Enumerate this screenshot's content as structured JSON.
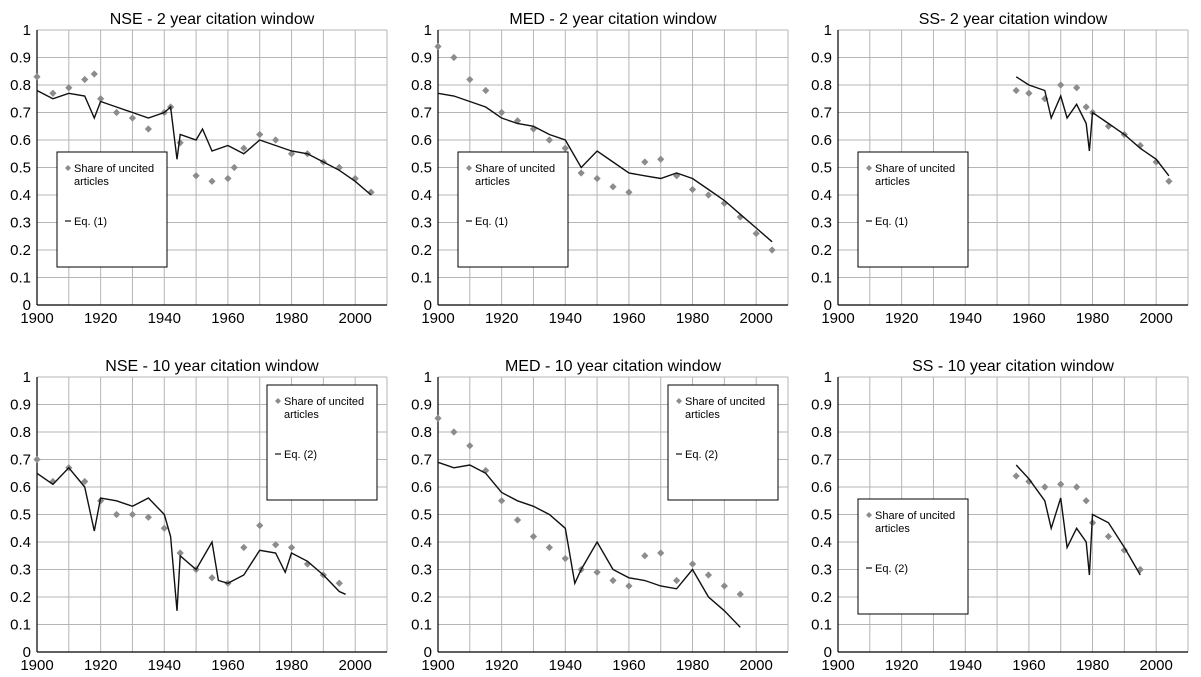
{
  "figure": {
    "colors": {
      "share": "#8c8c8c",
      "eq": "#111111",
      "grid": "#b5b5b5",
      "axis": "#000000"
    }
  },
  "chart_data": [
    {
      "type": "scatter",
      "title": "NSE - 2 year citation window",
      "xlim": [
        1900,
        2010
      ],
      "ylim": [
        0,
        1
      ],
      "x_ticks": [
        "1900",
        "1920",
        "1940",
        "1960",
        "1980",
        "2000"
      ],
      "y_ticks": [
        "0",
        "0.1",
        "0.2",
        "0.3",
        "0.4",
        "0.5",
        "0.6",
        "0.7",
        "0.8",
        "0.9",
        "1"
      ],
      "grid": true,
      "legend": {
        "position": "bottom-left",
        "labels": [
          "Share of uncited articles",
          "Eq. (1)"
        ]
      },
      "series": [
        {
          "name": "Share of uncited articles",
          "style": "markers",
          "x": [
            1900,
            1905,
            1910,
            1915,
            1918,
            1920,
            1925,
            1930,
            1935,
            1940,
            1942,
            1945,
            1950,
            1955,
            1960,
            1962,
            1965,
            1970,
            1975,
            1980,
            1985,
            1990,
            1995,
            2000,
            2005
          ],
          "y": [
            0.83,
            0.77,
            0.79,
            0.82,
            0.84,
            0.75,
            0.7,
            0.68,
            0.64,
            0.7,
            0.72,
            0.59,
            0.47,
            0.45,
            0.46,
            0.5,
            0.57,
            0.62,
            0.6,
            0.55,
            0.55,
            0.52,
            0.5,
            0.46,
            0.41
          ]
        },
        {
          "name": "Eq. (1)",
          "style": "line",
          "x": [
            1900,
            1905,
            1910,
            1915,
            1918,
            1920,
            1925,
            1930,
            1935,
            1940,
            1942,
            1944,
            1945,
            1950,
            1952,
            1955,
            1960,
            1965,
            1970,
            1975,
            1980,
            1985,
            1990,
            1995,
            2000,
            2005
          ],
          "y": [
            0.78,
            0.75,
            0.77,
            0.76,
            0.68,
            0.74,
            0.72,
            0.7,
            0.68,
            0.7,
            0.72,
            0.53,
            0.62,
            0.6,
            0.64,
            0.56,
            0.58,
            0.55,
            0.6,
            0.58,
            0.56,
            0.55,
            0.52,
            0.49,
            0.45,
            0.4
          ]
        }
      ]
    },
    {
      "type": "scatter",
      "title": "MED - 2 year citation window",
      "xlim": [
        1900,
        2010
      ],
      "ylim": [
        0,
        1
      ],
      "x_ticks": [
        "1900",
        "1920",
        "1940",
        "1960",
        "1980",
        "2000"
      ],
      "y_ticks": [
        "0",
        "0.1",
        "0.2",
        "0.3",
        "0.4",
        "0.5",
        "0.6",
        "0.7",
        "0.8",
        "0.9",
        "1"
      ],
      "grid": true,
      "legend": {
        "position": "bottom-left",
        "labels": [
          "Share of uncited articles",
          "Eq. (1)"
        ]
      },
      "series": [
        {
          "name": "Share of uncited articles",
          "style": "markers",
          "x": [
            1900,
            1905,
            1910,
            1915,
            1920,
            1925,
            1930,
            1935,
            1940,
            1945,
            1950,
            1955,
            1960,
            1965,
            1970,
            1975,
            1980,
            1985,
            1990,
            1995,
            2000,
            2005
          ],
          "y": [
            0.94,
            0.9,
            0.82,
            0.78,
            0.7,
            0.67,
            0.64,
            0.6,
            0.57,
            0.48,
            0.46,
            0.43,
            0.41,
            0.52,
            0.53,
            0.47,
            0.42,
            0.4,
            0.37,
            0.32,
            0.26,
            0.2
          ]
        },
        {
          "name": "Eq. (1)",
          "style": "line",
          "x": [
            1900,
            1905,
            1910,
            1915,
            1920,
            1925,
            1930,
            1935,
            1940,
            1945,
            1950,
            1955,
            1960,
            1965,
            1970,
            1975,
            1980,
            1985,
            1990,
            1995,
            2000,
            2005
          ],
          "y": [
            0.77,
            0.76,
            0.74,
            0.72,
            0.68,
            0.66,
            0.65,
            0.62,
            0.6,
            0.5,
            0.56,
            0.52,
            0.48,
            0.47,
            0.46,
            0.48,
            0.46,
            0.42,
            0.38,
            0.33,
            0.28,
            0.23
          ]
        }
      ]
    },
    {
      "type": "scatter",
      "title": "SS- 2 year citation window",
      "xlim": [
        1900,
        2010
      ],
      "ylim": [
        0,
        1
      ],
      "x_ticks": [
        "1900",
        "1920",
        "1940",
        "1960",
        "1980",
        "2000"
      ],
      "y_ticks": [
        "0",
        "0.1",
        "0.2",
        "0.3",
        "0.4",
        "0.5",
        "0.6",
        "0.7",
        "0.8",
        "0.9",
        "1"
      ],
      "grid": true,
      "legend": {
        "position": "bottom-left",
        "labels": [
          "Share of uncited articles",
          "Eq. (1)"
        ]
      },
      "series": [
        {
          "name": "Share of uncited articles",
          "style": "markers",
          "x": [
            1956,
            1960,
            1965,
            1970,
            1975,
            1978,
            1980,
            1985,
            1990,
            1995,
            2000,
            2004
          ],
          "y": [
            0.78,
            0.77,
            0.75,
            0.8,
            0.79,
            0.72,
            0.7,
            0.65,
            0.62,
            0.58,
            0.52,
            0.45
          ]
        },
        {
          "name": "Eq. (1)",
          "style": "line",
          "x": [
            1956,
            1960,
            1965,
            1967,
            1970,
            1972,
            1975,
            1978,
            1979,
            1980,
            1985,
            1990,
            1995,
            2000,
            2004
          ],
          "y": [
            0.83,
            0.8,
            0.78,
            0.68,
            0.76,
            0.68,
            0.73,
            0.66,
            0.56,
            0.7,
            0.66,
            0.62,
            0.57,
            0.53,
            0.47
          ]
        }
      ]
    },
    {
      "type": "scatter",
      "title": "NSE - 10 year citation window",
      "xlim": [
        1900,
        2010
      ],
      "ylim": [
        0,
        1
      ],
      "x_ticks": [
        "1900",
        "1920",
        "1940",
        "1960",
        "1980",
        "2000"
      ],
      "y_ticks": [
        "0",
        "0.1",
        "0.2",
        "0.3",
        "0.4",
        "0.5",
        "0.6",
        "0.7",
        "0.8",
        "0.9",
        "1"
      ],
      "grid": true,
      "legend": {
        "position": "top-right",
        "labels": [
          "Share of uncited articles",
          "Eq. (2)"
        ]
      },
      "series": [
        {
          "name": "Share of uncited articles",
          "style": "markers",
          "x": [
            1900,
            1905,
            1910,
            1915,
            1920,
            1925,
            1930,
            1935,
            1940,
            1945,
            1950,
            1955,
            1960,
            1965,
            1970,
            1975,
            1980,
            1985,
            1990,
            1995
          ],
          "y": [
            0.7,
            0.62,
            0.67,
            0.62,
            0.55,
            0.5,
            0.5,
            0.49,
            0.45,
            0.36,
            0.3,
            0.27,
            0.25,
            0.38,
            0.46,
            0.39,
            0.38,
            0.32,
            0.28,
            0.25
          ]
        },
        {
          "name": "Eq. (2)",
          "style": "line",
          "x": [
            1900,
            1905,
            1910,
            1915,
            1918,
            1920,
            1925,
            1930,
            1935,
            1940,
            1942,
            1944,
            1945,
            1950,
            1955,
            1957,
            1960,
            1965,
            1970,
            1975,
            1978,
            1980,
            1985,
            1990,
            1995,
            1997
          ],
          "y": [
            0.65,
            0.61,
            0.67,
            0.6,
            0.44,
            0.56,
            0.55,
            0.53,
            0.56,
            0.5,
            0.42,
            0.15,
            0.35,
            0.3,
            0.4,
            0.26,
            0.25,
            0.28,
            0.37,
            0.36,
            0.29,
            0.36,
            0.33,
            0.28,
            0.22,
            0.21
          ]
        }
      ]
    },
    {
      "type": "scatter",
      "title": "MED - 10 year citation window",
      "xlim": [
        1900,
        2010
      ],
      "ylim": [
        0,
        1
      ],
      "x_ticks": [
        "1900",
        "1920",
        "1940",
        "1960",
        "1980",
        "2000"
      ],
      "y_ticks": [
        "0",
        "0.1",
        "0.2",
        "0.3",
        "0.4",
        "0.5",
        "0.6",
        "0.7",
        "0.8",
        "0.9",
        "1"
      ],
      "grid": true,
      "legend": {
        "position": "top-right",
        "labels": [
          "Share of uncited articles",
          "Eq. (2)"
        ]
      },
      "series": [
        {
          "name": "Share of uncited articles",
          "style": "markers",
          "x": [
            1900,
            1905,
            1910,
            1915,
            1920,
            1925,
            1930,
            1935,
            1940,
            1945,
            1950,
            1955,
            1960,
            1965,
            1970,
            1975,
            1980,
            1985,
            1990,
            1995
          ],
          "y": [
            0.85,
            0.8,
            0.75,
            0.66,
            0.55,
            0.48,
            0.42,
            0.38,
            0.34,
            0.3,
            0.29,
            0.26,
            0.24,
            0.35,
            0.36,
            0.26,
            0.32,
            0.28,
            0.24,
            0.21
          ]
        },
        {
          "name": "Eq. (2)",
          "style": "line",
          "x": [
            1900,
            1905,
            1910,
            1915,
            1920,
            1925,
            1930,
            1935,
            1940,
            1943,
            1945,
            1950,
            1955,
            1960,
            1965,
            1970,
            1975,
            1980,
            1985,
            1990,
            1995
          ],
          "y": [
            0.69,
            0.67,
            0.68,
            0.65,
            0.58,
            0.55,
            0.53,
            0.5,
            0.45,
            0.25,
            0.3,
            0.4,
            0.3,
            0.27,
            0.26,
            0.24,
            0.23,
            0.3,
            0.2,
            0.15,
            0.09
          ]
        }
      ]
    },
    {
      "type": "scatter",
      "title": "SS - 10 year citation window",
      "xlim": [
        1900,
        2010
      ],
      "ylim": [
        0,
        1
      ],
      "x_ticks": [
        "1900",
        "1920",
        "1940",
        "1960",
        "1980",
        "2000"
      ],
      "y_ticks": [
        "0",
        "0.1",
        "0.2",
        "0.3",
        "0.4",
        "0.5",
        "0.6",
        "0.7",
        "0.8",
        "0.9",
        "1"
      ],
      "grid": true,
      "legend": {
        "position": "bottom-left",
        "labels": [
          "Share of uncited articles",
          "Eq. (2)"
        ]
      },
      "series": [
        {
          "name": "Share of uncited articles",
          "style": "markers",
          "x": [
            1956,
            1960,
            1965,
            1970,
            1975,
            1978,
            1980,
            1985,
            1990,
            1995
          ],
          "y": [
            0.64,
            0.62,
            0.6,
            0.61,
            0.6,
            0.55,
            0.47,
            0.42,
            0.37,
            0.3
          ]
        },
        {
          "name": "Eq. (2)",
          "style": "line",
          "x": [
            1956,
            1960,
            1965,
            1967,
            1970,
            1972,
            1975,
            1978,
            1979,
            1980,
            1985,
            1990,
            1995
          ],
          "y": [
            0.68,
            0.63,
            0.55,
            0.45,
            0.56,
            0.38,
            0.45,
            0.4,
            0.28,
            0.5,
            0.47,
            0.38,
            0.28
          ]
        }
      ]
    }
  ]
}
